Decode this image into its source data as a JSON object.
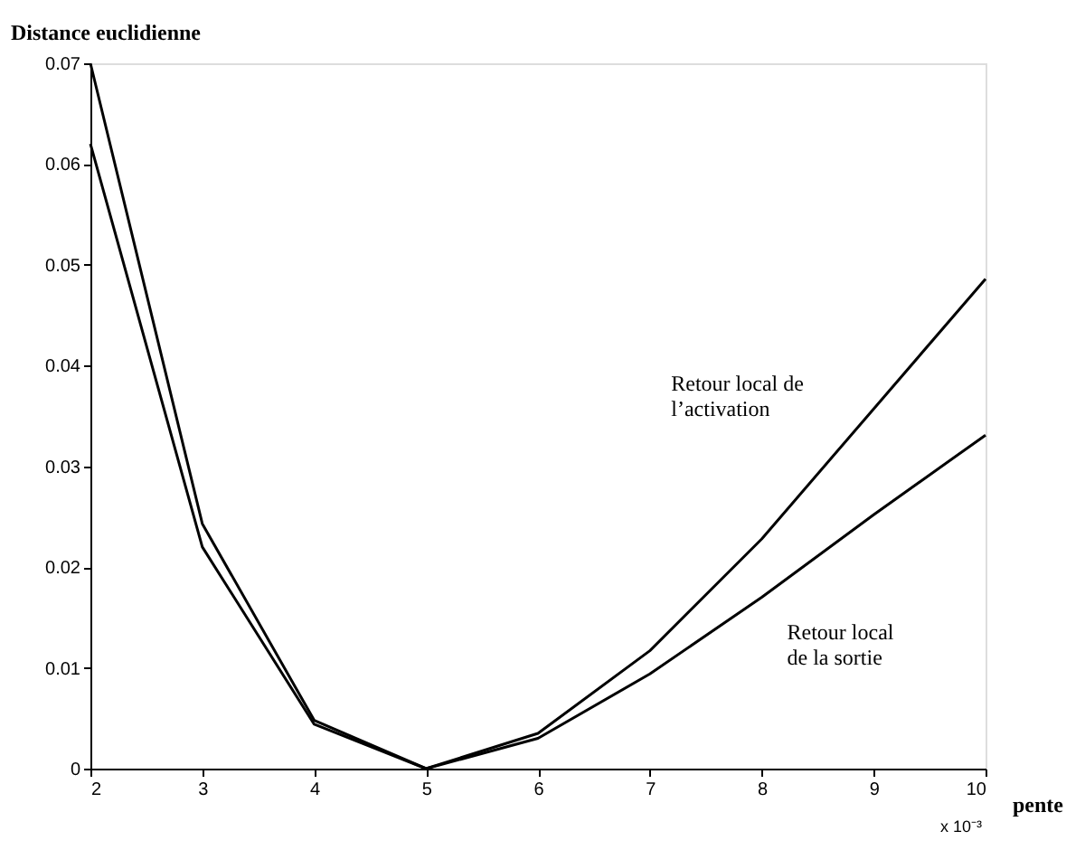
{
  "chart_data": {
    "type": "line",
    "ylabel": "Distance euclidienne",
    "xlabel": "pente",
    "x": [
      2,
      3,
      4,
      5,
      6,
      7,
      8,
      9,
      10
    ],
    "series": [
      {
        "name": "Retour local de l’activation",
        "color": "#000000",
        "values": [
          0.07,
          0.0243,
          0.0048,
          0.0,
          0.0035,
          0.0117,
          0.0228,
          0.0357,
          0.0486
        ]
      },
      {
        "name": "Retour local de la sortie",
        "color": "#000000",
        "values": [
          0.062,
          0.022,
          0.0044,
          0.0,
          0.003,
          0.0094,
          0.017,
          0.0252,
          0.0331
        ]
      }
    ],
    "xlim": [
      2,
      10
    ],
    "xticks": [
      2,
      3,
      4,
      5,
      6,
      7,
      8,
      9,
      10
    ],
    "ylim": [
      0,
      0.07
    ],
    "yticks": [
      0,
      0.01,
      0.02,
      0.03,
      0.04,
      0.05,
      0.06,
      0.07
    ],
    "annotations": [
      "x 10⁻³"
    ],
    "grid": false,
    "legend": false,
    "marker": "none",
    "line_style": "solid"
  }
}
